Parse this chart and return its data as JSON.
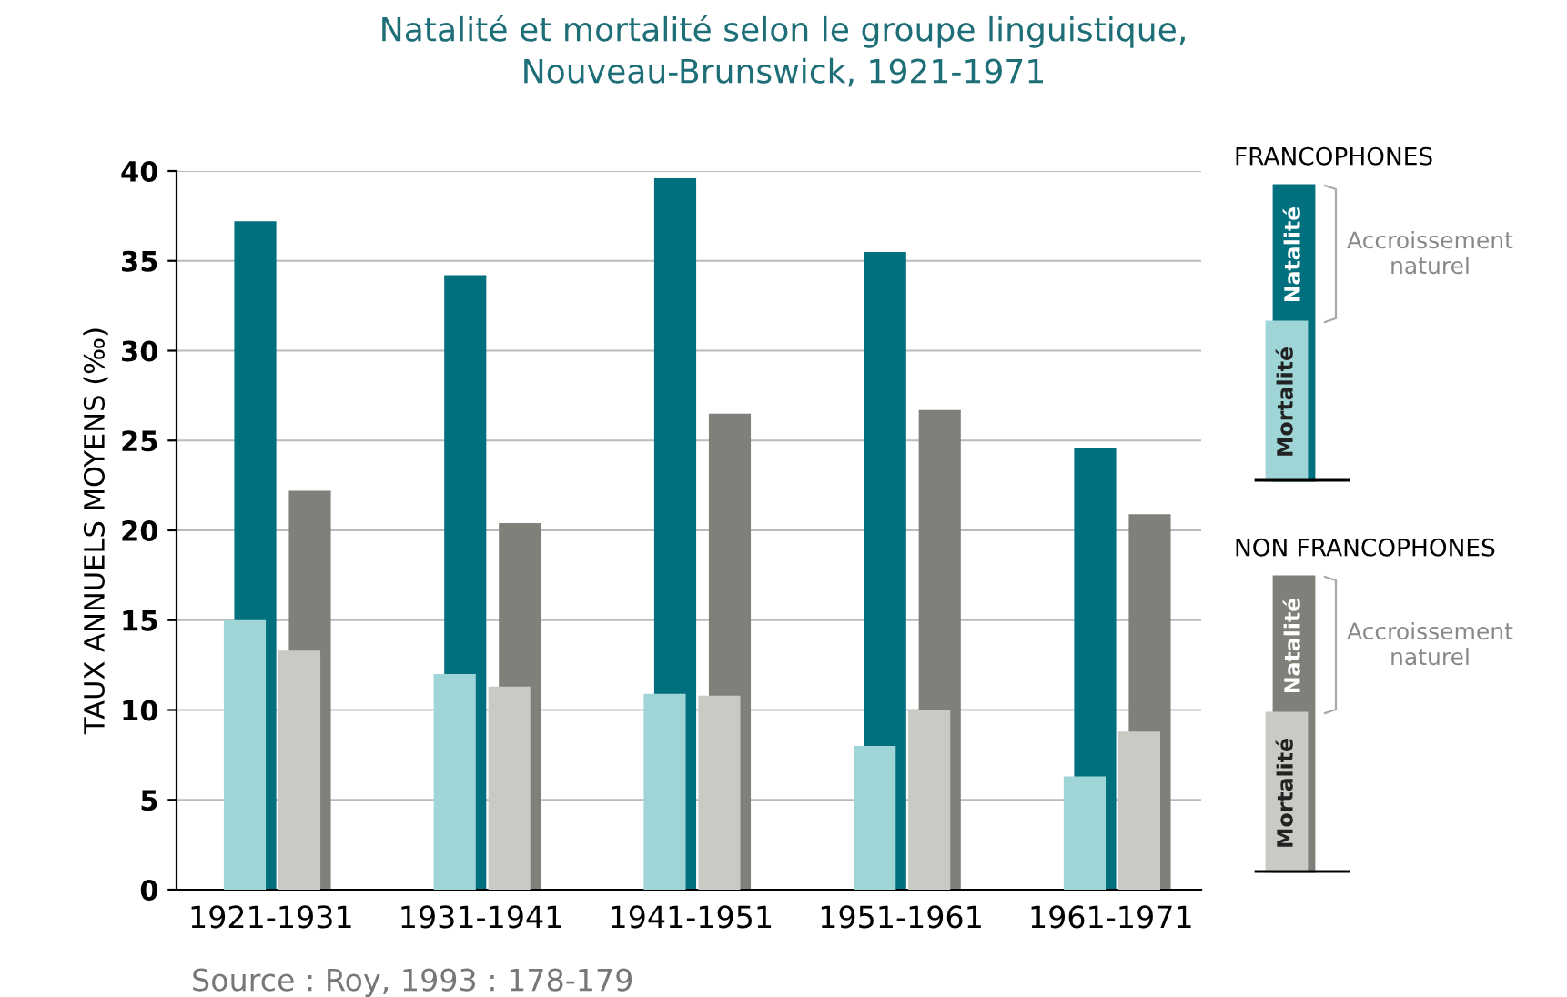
{
  "chart_data": {
    "type": "bar",
    "title": "Natalité et mortalité selon le groupe linguistique,\nNouveau-Brunswick, 1921-1971",
    "ylabel": "TAUX ANNUELS MOYENS (‰)",
    "categories": [
      "1921-1931",
      "1931-1941",
      "1941-1951",
      "1951-1961",
      "1961-1971"
    ],
    "series": [
      {
        "color": "#00707f",
        "values": [
          37.2,
          34.2,
          39.6,
          35.5,
          24.6
        ]
      },
      {
        "color": "#9fd5d6",
        "values": [
          15.0,
          12.0,
          10.9,
          8.0,
          6.3
        ]
      },
      {
        "color": "#7e8079",
        "values": [
          22.2,
          20.4,
          26.5,
          26.7,
          20.9
        ]
      },
      {
        "color": "#c8cac3",
        "values": [
          13.3,
          11.3,
          10.8,
          10.0,
          8.8
        ]
      }
    ],
    "ylim": [
      0,
      40
    ],
    "yticks": [
      0,
      5,
      10,
      15,
      20,
      25,
      30,
      35,
      40
    ],
    "grid": "y",
    "annotations": [
      "FRANCOPHONES",
      "Natalité",
      "Mortalité",
      "Accroissement naturel",
      "NON FRANCOPHONES",
      "Natalité",
      "Mortalité",
      "Accroissement naturel",
      "Source : Roy, 1993 : 178-179"
    ]
  }
}
